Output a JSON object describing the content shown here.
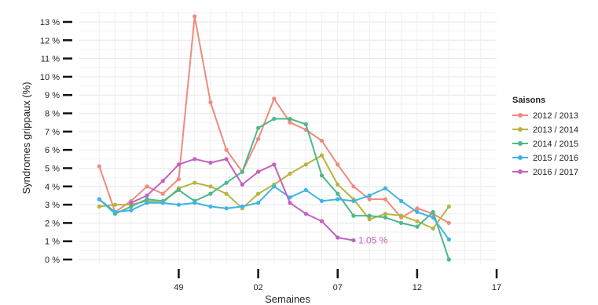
{
  "chart_data": {
    "type": "line",
    "xlabel": "Semaines",
    "ylabel": "Syndromes grippaux (%)",
    "x": [
      44,
      45,
      46,
      47,
      48,
      49,
      50,
      51,
      52,
      53,
      54,
      55,
      56,
      57,
      58,
      59,
      60,
      61,
      62,
      63,
      64,
      65,
      66,
      67,
      68
    ],
    "x_ticks": [
      {
        "x": 49,
        "label": "49"
      },
      {
        "x": 54,
        "label": "02"
      },
      {
        "x": 59,
        "label": "07"
      },
      {
        "x": 64,
        "label": "12"
      },
      {
        "x": 69,
        "label": "17"
      }
    ],
    "xlim": [
      42.7,
      69
    ],
    "ylim": [
      -0.3,
      13.6
    ],
    "y_ticks": [
      {
        "y": 0,
        "label": "0 %"
      },
      {
        "y": 1,
        "label": "1 %"
      },
      {
        "y": 2,
        "label": "2 %"
      },
      {
        "y": 3,
        "label": "3 %"
      },
      {
        "y": 4,
        "label": "4 %"
      },
      {
        "y": 5,
        "label": "5 %"
      },
      {
        "y": 6,
        "label": "6 %"
      },
      {
        "y": 7,
        "label": "7 %"
      },
      {
        "y": 8,
        "label": "8 %"
      },
      {
        "y": 9,
        "label": "9 %"
      },
      {
        "y": 10,
        "label": "10 %"
      },
      {
        "y": 11,
        "label": "11 %"
      },
      {
        "y": 12,
        "label": "12 %"
      },
      {
        "y": 13,
        "label": "13 %"
      }
    ],
    "grid": true,
    "legend": {
      "title": "Saisons",
      "position": "right"
    },
    "series": [
      {
        "name": "2012 / 2013",
        "color": "#F08A7E",
        "values": [
          5.1,
          2.6,
          3.2,
          4.0,
          3.6,
          4.4,
          13.3,
          8.6,
          6.0,
          4.8,
          6.6,
          8.8,
          7.5,
          7.1,
          6.5,
          5.2,
          4.0,
          3.3,
          3.3,
          2.3,
          2.8,
          2.5,
          2.0,
          null,
          null
        ]
      },
      {
        "name": "2013 / 2014",
        "color": "#B8B43E",
        "values": [
          2.9,
          3.0,
          3.0,
          3.2,
          3.1,
          3.9,
          4.2,
          4.0,
          3.6,
          2.8,
          3.6,
          4.1,
          4.7,
          5.2,
          5.7,
          4.1,
          3.3,
          2.2,
          2.5,
          2.4,
          2.1,
          1.7,
          2.9,
          null,
          null
        ]
      },
      {
        "name": "2014 / 2015",
        "color": "#4DB888",
        "values": [
          3.3,
          2.5,
          2.9,
          3.3,
          3.2,
          3.8,
          3.2,
          3.6,
          4.2,
          4.8,
          7.2,
          7.7,
          7.7,
          7.4,
          4.6,
          3.6,
          2.4,
          2.4,
          2.3,
          2.0,
          1.8,
          2.6,
          0.0,
          null,
          null
        ]
      },
      {
        "name": "2015 / 2016",
        "color": "#3FB4E8",
        "values": [
          3.3,
          2.6,
          2.7,
          3.1,
          3.1,
          3.0,
          3.1,
          2.9,
          2.8,
          2.9,
          3.1,
          4.0,
          3.4,
          3.8,
          3.2,
          3.3,
          3.2,
          3.5,
          3.9,
          3.2,
          2.6,
          2.3,
          1.1,
          null,
          null
        ]
      },
      {
        "name": "2016 / 2017",
        "color": "#C261C0",
        "values": [
          null,
          null,
          3.1,
          3.5,
          4.3,
          5.2,
          5.5,
          5.3,
          5.5,
          4.1,
          4.8,
          5.2,
          3.1,
          2.5,
          2.1,
          1.2,
          1.05,
          null,
          null,
          null,
          null,
          null,
          null,
          null,
          null
        ]
      }
    ],
    "annotations": [
      {
        "text": "1.05 %",
        "x": 60,
        "y": 1.05,
        "color": "#C261C0"
      }
    ]
  }
}
